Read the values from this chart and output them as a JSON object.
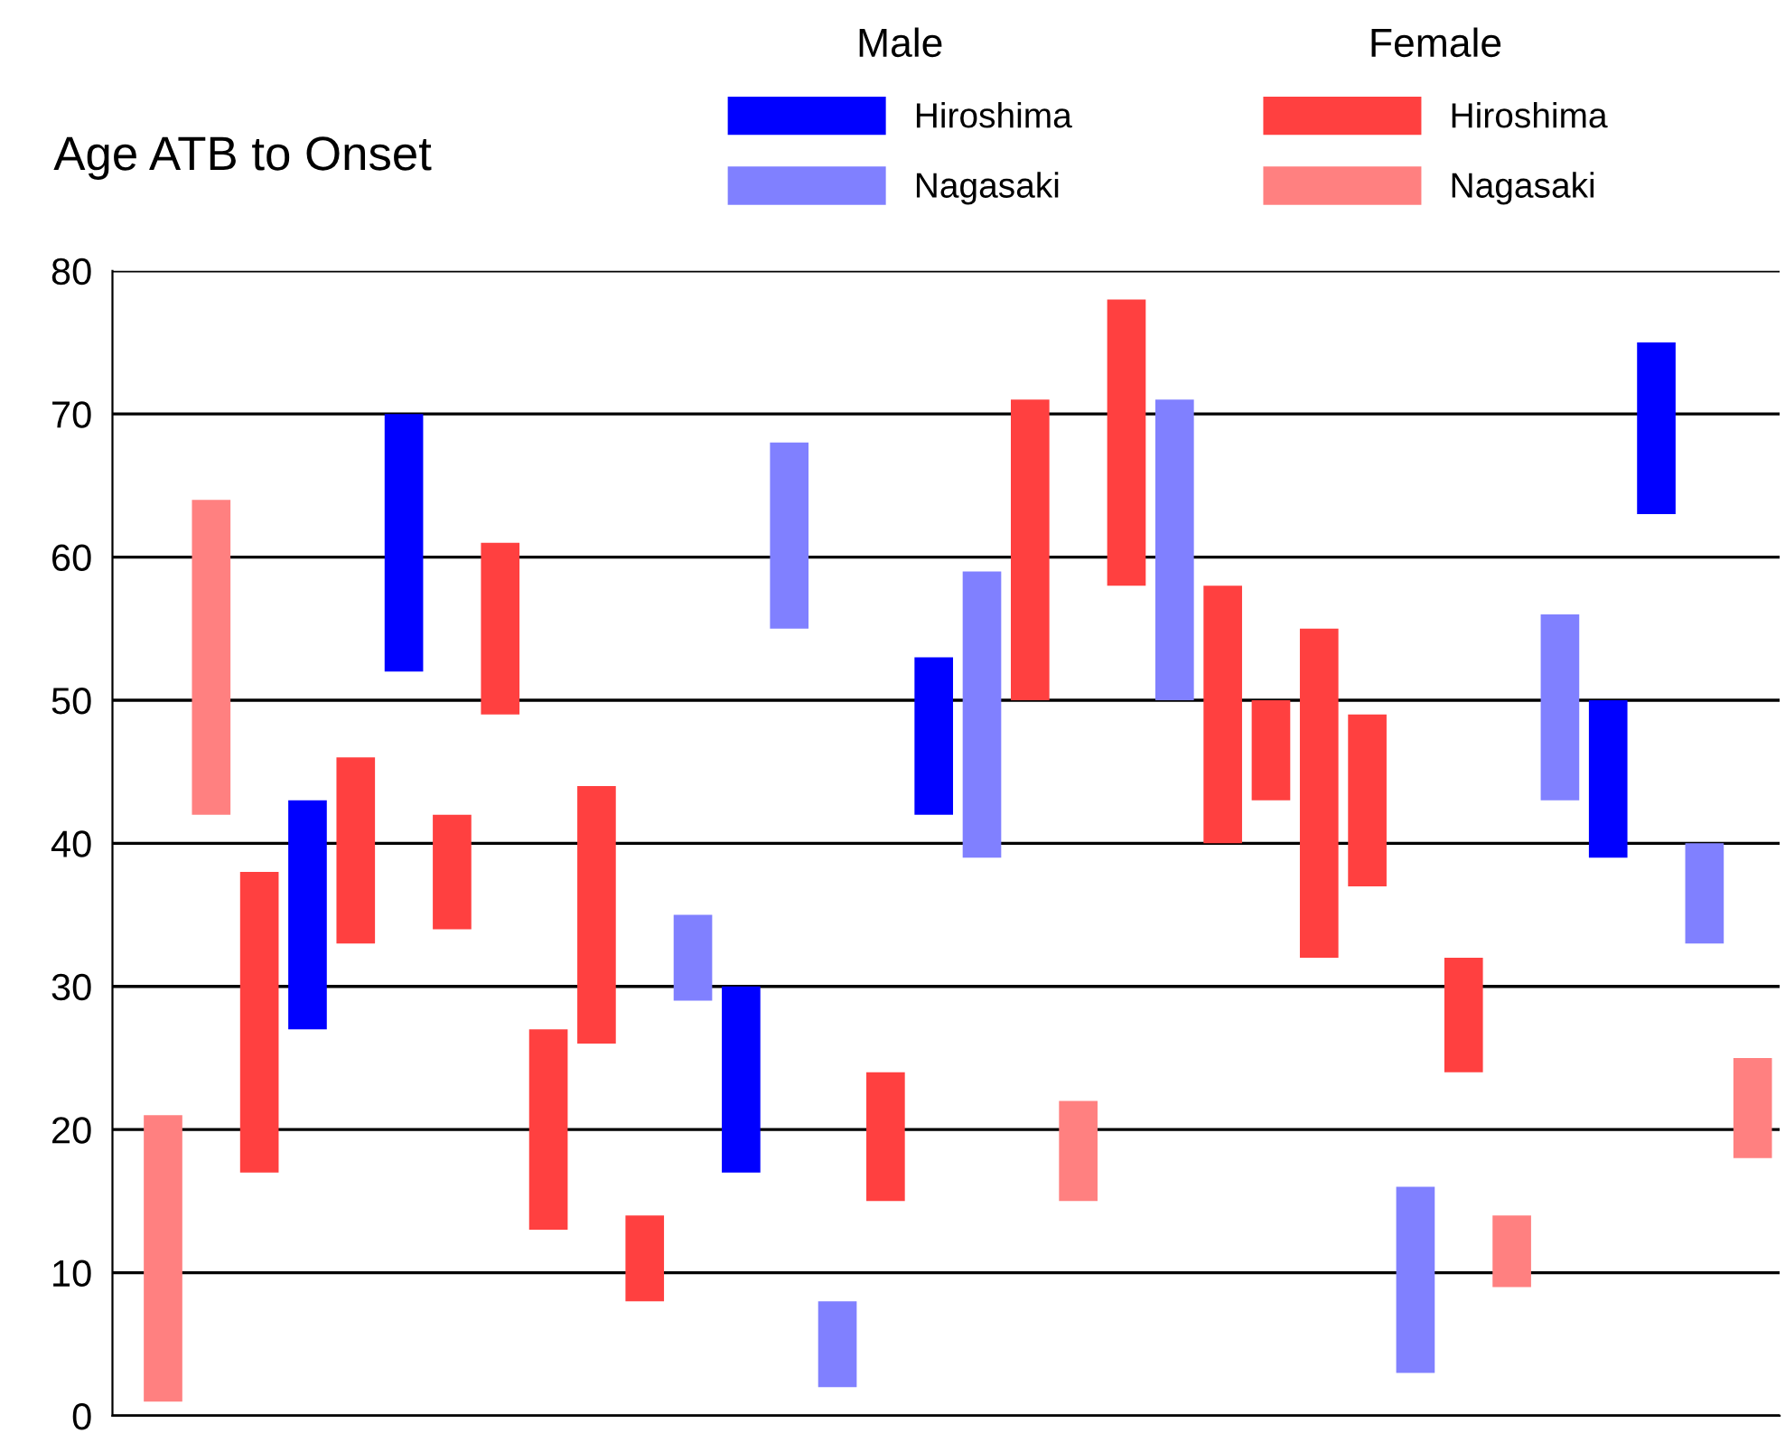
{
  "chart_data": {
    "type": "bar",
    "title": "Age ATB to Onset",
    "categories": [
      null,
      null,
      null,
      null,
      null,
      null,
      null,
      null,
      null,
      null,
      null,
      null,
      null,
      null,
      null,
      null,
      null,
      null,
      null,
      null,
      null,
      null,
      null,
      null,
      null,
      null,
      null,
      null,
      null,
      null,
      null,
      null,
      null,
      null
    ],
    "series": [
      {
        "name": "Hiroshima",
        "color": "#0000ff",
        "base": [
          null,
          null,
          null,
          27,
          null,
          52,
          null,
          null,
          null,
          null,
          null,
          null,
          17,
          null,
          null,
          null,
          42,
          null,
          null,
          null,
          null,
          null,
          null,
          null,
          null,
          null,
          null,
          null,
          null,
          null,
          39,
          63,
          null,
          null
        ],
        "values": [
          null,
          null,
          null,
          16,
          null,
          18,
          null,
          null,
          null,
          null,
          null,
          null,
          13,
          null,
          null,
          null,
          11,
          null,
          null,
          null,
          null,
          null,
          null,
          null,
          null,
          null,
          null,
          null,
          null,
          null,
          11,
          12,
          null,
          null
        ]
      },
      {
        "name": "Nagasaki",
        "color": "#8080ff",
        "base": [
          null,
          null,
          null,
          null,
          null,
          null,
          null,
          null,
          null,
          null,
          null,
          29,
          null,
          55,
          2,
          null,
          null,
          39,
          null,
          null,
          null,
          50,
          null,
          null,
          null,
          null,
          3,
          null,
          null,
          43,
          null,
          null,
          33,
          null
        ],
        "values": [
          null,
          null,
          null,
          null,
          null,
          null,
          null,
          null,
          null,
          null,
          null,
          6,
          null,
          13,
          6,
          null,
          null,
          20,
          null,
          null,
          null,
          21,
          null,
          null,
          null,
          null,
          13,
          null,
          null,
          13,
          null,
          null,
          7,
          null
        ]
      },
      {
        "name": "Hiroshima",
        "color": "#ff4040",
        "base": [
          null,
          null,
          17,
          null,
          33,
          null,
          34,
          49,
          13,
          26,
          8,
          null,
          null,
          null,
          null,
          15,
          null,
          null,
          50,
          null,
          58,
          null,
          40,
          43,
          32,
          37,
          null,
          24,
          null,
          null,
          null,
          null,
          null,
          null
        ],
        "values": [
          null,
          null,
          21,
          null,
          13,
          null,
          8,
          12,
          14,
          18,
          6,
          null,
          null,
          null,
          null,
          9,
          null,
          null,
          21,
          null,
          20,
          null,
          18,
          7,
          23,
          12,
          null,
          8,
          null,
          null,
          null,
          null,
          null,
          null
        ]
      },
      {
        "name": "Nagasaki",
        "color": "#ff8080",
        "base": [
          1,
          42,
          null,
          null,
          null,
          null,
          null,
          null,
          null,
          null,
          null,
          null,
          null,
          null,
          null,
          null,
          null,
          null,
          null,
          15,
          null,
          null,
          null,
          null,
          null,
          null,
          null,
          null,
          9,
          null,
          null,
          null,
          null,
          18
        ],
        "values": [
          20,
          22,
          null,
          null,
          null,
          null,
          null,
          null,
          null,
          null,
          null,
          null,
          null,
          null,
          null,
          null,
          null,
          null,
          null,
          7,
          null,
          null,
          null,
          null,
          null,
          null,
          null,
          null,
          5,
          null,
          null,
          null,
          null,
          7
        ]
      }
    ],
    "annotations": [
      "Male",
      "Female"
    ],
    "ylim": [
      0,
      80
    ],
    "yticks": [
      0,
      10,
      20,
      30,
      40,
      50,
      60,
      70,
      80
    ],
    "grid": "y",
    "legend": "top right"
  }
}
